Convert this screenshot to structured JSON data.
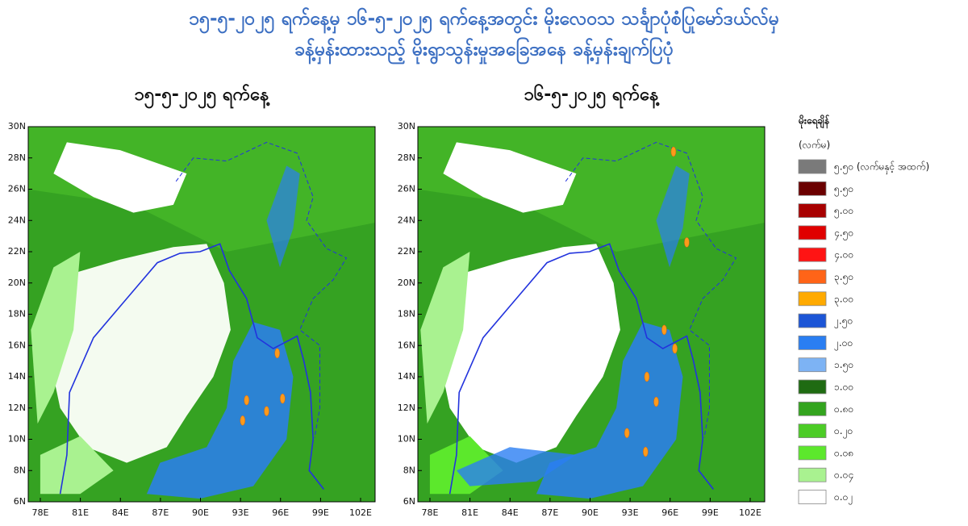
{
  "title": [
    "၁၅-၅-၂၀၂၅ ရက်နေ့မှ ၁၆-၅-၂၀၂၅ ရက်နေ့အတွင်း မိုးလေဝသ သင်္ချာပုံစံပြုမော်ဒယ်လ်မှ",
    "ခန့်မှန်းထားသည့် မိုးရွာသွန်းမှုအခြေအနေ ခန့်မှန်းချက်ပြပုံ"
  ],
  "panels": [
    {
      "title": "၁၅-၅-၂၀၂၅ ရက်နေ့",
      "y_ticks": [
        "30N",
        "28N",
        "26N",
        "24N",
        "22N",
        "20N",
        "18N",
        "16N",
        "14N",
        "12N",
        "10N",
        "8N",
        "6N"
      ],
      "x_ticks": [
        "78E",
        "81E",
        "84E",
        "87E",
        "90E",
        "93E",
        "96E",
        "99E",
        "102E"
      ]
    },
    {
      "title": "၁၆-၅-၂၀၂၅ ရက်နေ့",
      "y_ticks": [
        "30N",
        "28N",
        "26N",
        "24N",
        "22N",
        "20N",
        "18N",
        "16N",
        "14N",
        "12N",
        "10N",
        "8N",
        "6N"
      ],
      "x_ticks": [
        "78E",
        "81E",
        "84E",
        "87E",
        "90E",
        "93E",
        "96E",
        "99E",
        "102E"
      ]
    }
  ],
  "legend": {
    "title": "မိုးရေချိန်",
    "unit": "(လက်မ)",
    "items": [
      {
        "label": "၅.၅၀ (လက်မနှင့် အထက်)",
        "color": "#7a7a7a"
      },
      {
        "label": "၅.၅၀",
        "color": "#6b0000"
      },
      {
        "label": "၅.၀၀",
        "color": "#a80000"
      },
      {
        "label": "၄.၅၀",
        "color": "#e00000"
      },
      {
        "label": "၄.၀၀",
        "color": "#ff1414"
      },
      {
        "label": "၃.၅၀",
        "color": "#ff6418"
      },
      {
        "label": "၃.၀၀",
        "color": "#ffaa00"
      },
      {
        "label": "၂.၅၀",
        "color": "#1c55d6"
      },
      {
        "label": "၂.၀၀",
        "color": "#2a7ef2"
      },
      {
        "label": "၁.၅၀",
        "color": "#7db3f4"
      },
      {
        "label": "၁.၀၀",
        "color": "#1f6b12"
      },
      {
        "label": "၀.၈၀",
        "color": "#33a41e"
      },
      {
        "label": "၀.၂၀",
        "color": "#4ccc26"
      },
      {
        "label": "၀.၀၈",
        "color": "#5ce82c"
      },
      {
        "label": "၀.၀၄",
        "color": "#a9f290"
      },
      {
        "label": "၀.၀၂",
        "color": "#ffffff"
      }
    ]
  }
}
